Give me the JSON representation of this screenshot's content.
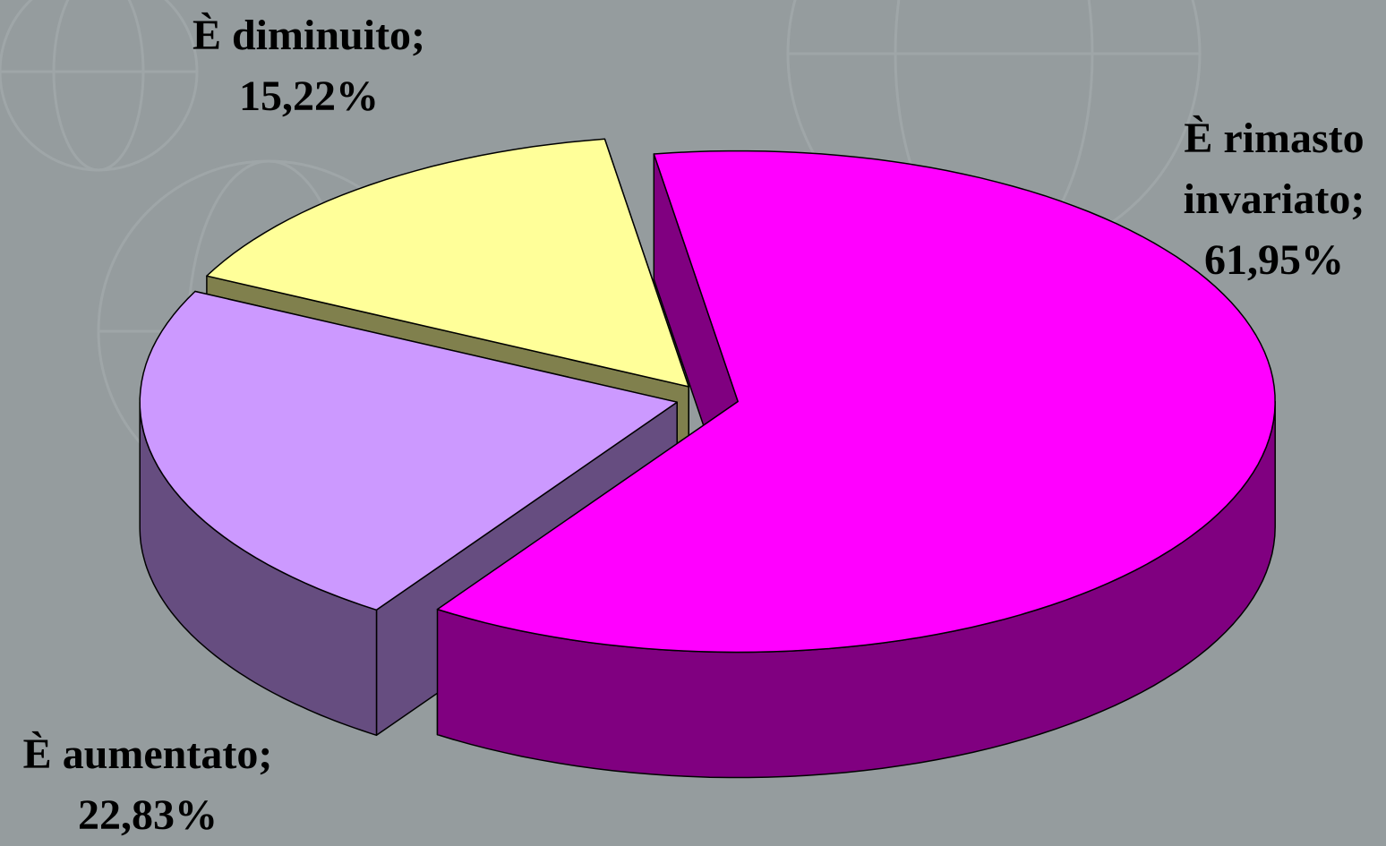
{
  "chart_data": {
    "type": "pie3d",
    "categories": [
      "È rimasto invariato;",
      "È aumentato;",
      "È diminuito;"
    ],
    "values": [
      61.95,
      22.83,
      15.22
    ],
    "value_labels": [
      "61,95%",
      "22,83%",
      "15,22%"
    ],
    "colors": [
      "#ff00ff",
      "#cc99ff",
      "#ffff99"
    ]
  }
}
